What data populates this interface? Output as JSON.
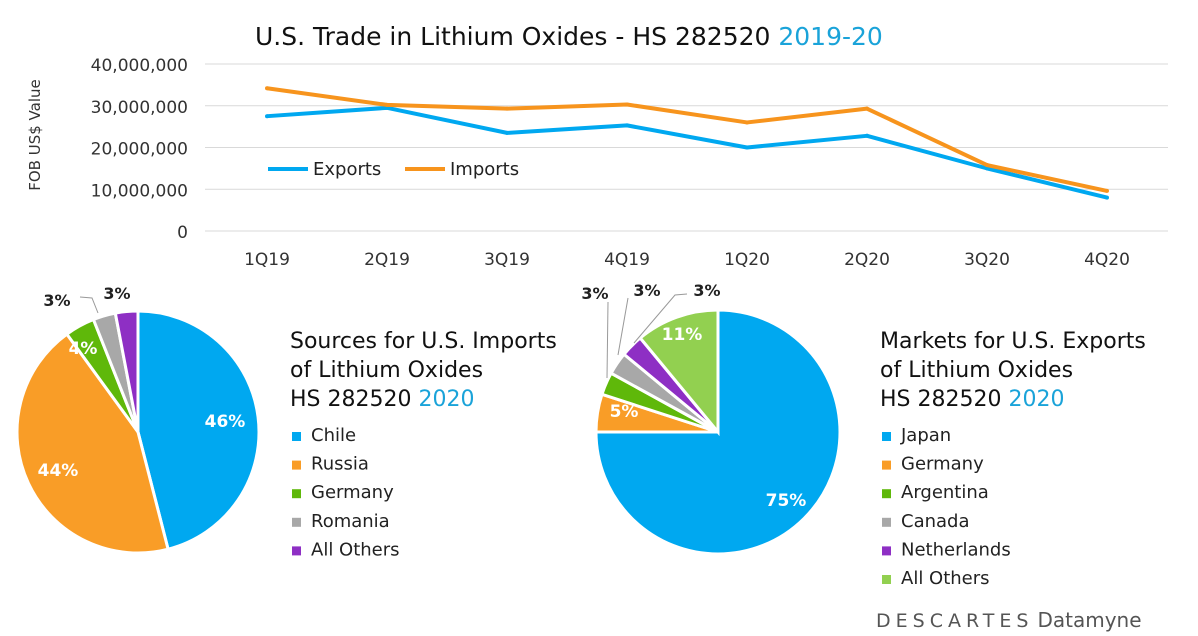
{
  "chart_data": [
    {
      "type": "line",
      "title": "U.S. Trade in Lithium Oxides - HS 282520",
      "title_year": "2019-20",
      "ylabel": "FOB US$ Value",
      "ylim": [
        0,
        40000000
      ],
      "yticks": [
        "0",
        "10,000,000",
        "20,000,000",
        "30,000,000",
        "40,000,000"
      ],
      "categories": [
        "1Q19",
        "2Q19",
        "3Q19",
        "4Q19",
        "1Q20",
        "2Q20",
        "3Q20",
        "4Q20"
      ],
      "series": [
        {
          "name": "Exports",
          "color": "#00a8f0",
          "values": [
            27500000,
            29500000,
            23500000,
            25300000,
            20000000,
            22800000,
            15000000,
            8000000
          ]
        },
        {
          "name": "Imports",
          "color": "#f7941d",
          "values": [
            34200000,
            30200000,
            29300000,
            30300000,
            26000000,
            29300000,
            15800000,
            9600000
          ]
        }
      ],
      "legend": "inside-left",
      "grid": true
    },
    {
      "type": "pie",
      "title": [
        "Sources for U.S. Imports",
        "of Lithium Oxides",
        "HS 282520"
      ],
      "title_year": "2020",
      "labels": [
        "Chile",
        "Russia",
        "Germany",
        "Romania",
        "All Others"
      ],
      "values": [
        46,
        44,
        4,
        3,
        3
      ],
      "data_labels": [
        "46%",
        "44%",
        "4%",
        "3%",
        "3%"
      ],
      "colors": [
        "#00a8f0",
        "#f99d27",
        "#5fb80a",
        "#a8a8a8",
        "#8e2fc4"
      ]
    },
    {
      "type": "pie",
      "title": [
        "Markets for U.S. Exports",
        "of Lithium Oxides",
        "HS 282520"
      ],
      "title_year": "2020",
      "labels": [
        "Japan",
        "Germany",
        "Argentina",
        "Canada",
        "Netherlands",
        "All Others"
      ],
      "values": [
        75,
        5,
        3,
        3,
        3,
        11
      ],
      "data_labels": [
        "75%",
        "5%",
        "3%",
        "3%",
        "3%",
        "11%"
      ],
      "colors": [
        "#00a8f0",
        "#f99d27",
        "#5fb80a",
        "#a8a8a8",
        "#8e2fc4",
        "#92d050"
      ]
    }
  ],
  "logo": {
    "brand": "DESCARTES",
    "product": "Datamyne"
  },
  "accent": "#1aa3d9"
}
